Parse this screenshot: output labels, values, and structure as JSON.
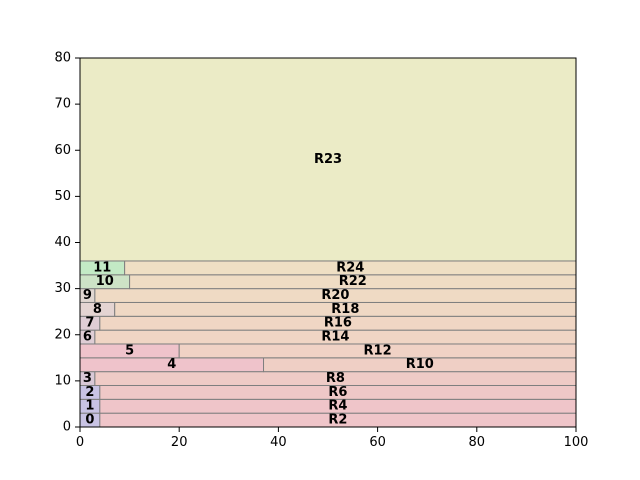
{
  "chart_data": {
    "type": "rectangles",
    "title": "",
    "xlabel": "",
    "ylabel": "",
    "xlim": [
      0,
      100
    ],
    "ylim": [
      0,
      80
    ],
    "x_ticks": [
      0,
      20,
      40,
      60,
      80,
      100
    ],
    "y_ticks": [
      0,
      10,
      20,
      30,
      40,
      50,
      60,
      70,
      80
    ],
    "grid": false,
    "legend": "none",
    "rectangles": [
      {
        "label": "0",
        "x0": 0,
        "x1": 4,
        "y0": 0,
        "y1": 3,
        "color": "#c8c3e4"
      },
      {
        "label": "R2",
        "x0": 4,
        "x1": 100,
        "y0": 0,
        "y1": 3,
        "color": "#efc5c9"
      },
      {
        "label": "1",
        "x0": 0,
        "x1": 4,
        "y0": 3,
        "y1": 6,
        "color": "#c8c3e4"
      },
      {
        "label": "R4",
        "x0": 4,
        "x1": 100,
        "y0": 3,
        "y1": 6,
        "color": "#efc5c9"
      },
      {
        "label": "2",
        "x0": 0,
        "x1": 4,
        "y0": 6,
        "y1": 9,
        "color": "#c8c3e4"
      },
      {
        "label": "R6",
        "x0": 4,
        "x1": 100,
        "y0": 6,
        "y1": 9,
        "color": "#efc8c7"
      },
      {
        "label": "3",
        "x0": 0,
        "x1": 3,
        "y0": 9,
        "y1": 12,
        "color": "#d9c9d7"
      },
      {
        "label": "R8",
        "x0": 3,
        "x1": 100,
        "y0": 9,
        "y1": 12,
        "color": "#efcbc6"
      },
      {
        "label": "4",
        "x0": 0,
        "x1": 37,
        "y0": 12,
        "y1": 15,
        "color": "#efc3cb"
      },
      {
        "label": "R10",
        "x0": 37,
        "x1": 100,
        "y0": 12,
        "y1": 15,
        "color": "#efcfc5"
      },
      {
        "label": "5",
        "x0": 0,
        "x1": 20,
        "y0": 15,
        "y1": 18,
        "color": "#efc3cb"
      },
      {
        "label": "R12",
        "x0": 20,
        "x1": 100,
        "y0": 15,
        "y1": 18,
        "color": "#f0d2c5"
      },
      {
        "label": "6",
        "x0": 0,
        "x1": 3,
        "y0": 18,
        "y1": 21,
        "color": "#dfcdd5"
      },
      {
        "label": "R14",
        "x0": 3,
        "x1": 100,
        "y0": 18,
        "y1": 21,
        "color": "#f0d5c4"
      },
      {
        "label": "7",
        "x0": 0,
        "x1": 4,
        "y0": 21,
        "y1": 24,
        "color": "#dfcdd5"
      },
      {
        "label": "R16",
        "x0": 4,
        "x1": 100,
        "y0": 21,
        "y1": 24,
        "color": "#f0d6c4"
      },
      {
        "label": "8",
        "x0": 0,
        "x1": 7,
        "y0": 24,
        "y1": 27,
        "color": "#e4d4d2"
      },
      {
        "label": "R18",
        "x0": 7,
        "x1": 100,
        "y0": 24,
        "y1": 27,
        "color": "#efd8c4"
      },
      {
        "label": "9",
        "x0": 0,
        "x1": 3,
        "y0": 27,
        "y1": 30,
        "color": "#e0d6d0"
      },
      {
        "label": "R20",
        "x0": 3,
        "x1": 100,
        "y0": 27,
        "y1": 30,
        "color": "#efdac4"
      },
      {
        "label": "10",
        "x0": 0,
        "x1": 10,
        "y0": 30,
        "y1": 33,
        "color": "#cde3c6"
      },
      {
        "label": "R22",
        "x0": 10,
        "x1": 100,
        "y0": 30,
        "y1": 33,
        "color": "#efdcc4"
      },
      {
        "label": "11",
        "x0": 0,
        "x1": 9,
        "y0": 33,
        "y1": 36,
        "color": "#c3eac5"
      },
      {
        "label": "R24",
        "x0": 9,
        "x1": 100,
        "y0": 33,
        "y1": 36,
        "color": "#efdfc4"
      },
      {
        "label": "R23",
        "x0": 0,
        "x1": 100,
        "y0": 36,
        "y1": 80,
        "color": "#ebebc6"
      }
    ]
  }
}
